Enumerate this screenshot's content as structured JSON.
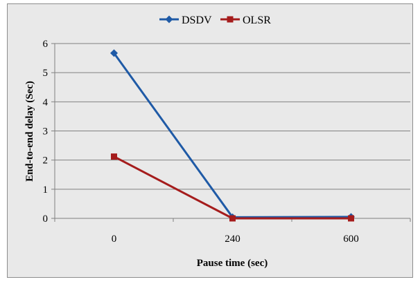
{
  "chart_data": {
    "type": "line",
    "title": "",
    "xlabel": "Pause time (sec)",
    "ylabel": "End-to-end delay (Sec)",
    "categories": [
      "0",
      "240",
      "600"
    ],
    "ylim": [
      0,
      6
    ],
    "yticks": [
      "0",
      "1",
      "2",
      "3",
      "4",
      "5",
      "6"
    ],
    "grid": true,
    "legend_position": "top",
    "series": [
      {
        "name": "DSDV",
        "values": [
          5.67,
          0.04,
          0.05
        ],
        "color": "#1f5aa6",
        "marker": "diamond"
      },
      {
        "name": "OLSR",
        "values": [
          2.12,
          0.0,
          0.0
        ],
        "color": "#a51c1c",
        "marker": "square"
      }
    ]
  }
}
